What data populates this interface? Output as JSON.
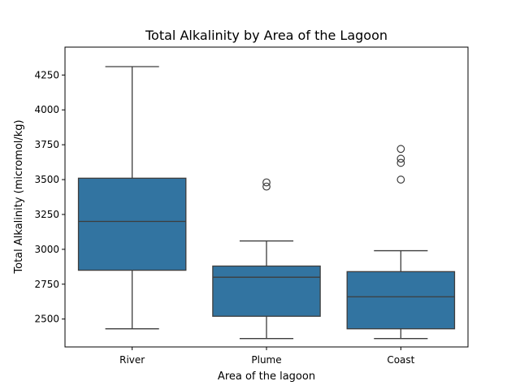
{
  "chart_data": {
    "type": "box",
    "title": "Total Alkalinity by Area of the Lagoon",
    "xlabel": "Area of the lagoon",
    "ylabel": "Total Alkalinity (micromol/kg)",
    "ylim": [
      2300,
      4450
    ],
    "yticks": [
      2500,
      2750,
      3000,
      3250,
      3500,
      3750,
      4000,
      4250
    ],
    "yticklabels": [
      "2500",
      "2750",
      "3000",
      "3250",
      "3500",
      "3750",
      "4000",
      "4250"
    ],
    "categories": [
      "River",
      "Plume",
      "Coast"
    ],
    "box_color": "#3274a1",
    "boxes": [
      {
        "category": "River",
        "whisker_low": 2430,
        "q1": 2850,
        "median": 3200,
        "q3": 3510,
        "whisker_high": 4310,
        "outliers": []
      },
      {
        "category": "Plume",
        "whisker_low": 2360,
        "q1": 2520,
        "median": 2800,
        "q3": 2880,
        "whisker_high": 3060,
        "outliers": [
          3450,
          3480
        ]
      },
      {
        "category": "Coast",
        "whisker_low": 2360,
        "q1": 2430,
        "median": 2660,
        "q3": 2840,
        "whisker_high": 2990,
        "outliers": [
          3500,
          3620,
          3650,
          3720
        ]
      }
    ],
    "grid": false,
    "legend": "none"
  }
}
